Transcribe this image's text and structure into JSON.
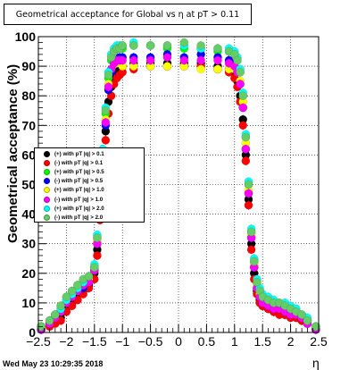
{
  "title": "Geometrical acceptance for Global vs  η at pT > 0.11",
  "footer": {
    "timestamp": "Wed May 23 10:29:35 2018"
  },
  "chart_data": {
    "type": "scatter",
    "title": "Geometrical acceptance for Global vs  η at pT > 0.11",
    "xlabel": "η",
    "ylabel": "Geometrical acceptance (%)",
    "xlim": [
      -2.5,
      2.5
    ],
    "ylim": [
      0,
      100
    ],
    "xticks": [
      "−2.5",
      "−2",
      "−1.5",
      "−1",
      "−0.5",
      "0",
      "0.5",
      "1",
      "1.5",
      "2",
      "2.5"
    ],
    "yticks": [
      "0",
      "10",
      "20",
      "30",
      "40",
      "50",
      "60",
      "70",
      "80",
      "90",
      "100"
    ],
    "grid": true,
    "legend_position": "left",
    "series": [
      {
        "name": "(+) with pT  |q| > 0.1",
        "color": "#000000",
        "x": [
          -2.45,
          -2.3,
          -2.2,
          -2.1,
          -2.0,
          -1.9,
          -1.8,
          -1.7,
          -1.6,
          -1.5,
          -1.45,
          -1.4,
          -1.35,
          -1.3,
          -1.25,
          -1.2,
          -1.15,
          -1.1,
          -1.05,
          -1.0,
          -0.8,
          -0.5,
          -0.2,
          0.1,
          0.4,
          0.7,
          0.9,
          1.0,
          1.05,
          1.1,
          1.15,
          1.2,
          1.25,
          1.3,
          1.35,
          1.4,
          1.45,
          1.5,
          1.6,
          1.7,
          1.8,
          1.9,
          2.0,
          2.1,
          2.2,
          2.3,
          2.45
        ],
        "y": [
          1,
          3,
          4,
          5,
          8,
          10,
          13,
          14,
          16,
          20,
          28,
          40,
          55,
          68,
          78,
          83,
          86,
          88,
          89,
          90,
          91,
          91,
          91,
          91,
          91,
          90,
          89,
          88,
          85,
          80,
          72,
          60,
          45,
          30,
          20,
          14,
          11,
          9,
          8,
          7,
          7,
          6,
          6,
          5,
          4,
          3,
          1
        ]
      },
      {
        "name": "(-) with pT  |q| > 0.1",
        "color": "#ff0000",
        "x": [
          -2.45,
          -2.3,
          -2.2,
          -2.1,
          -2.0,
          -1.9,
          -1.8,
          -1.7,
          -1.6,
          -1.5,
          -1.45,
          -1.4,
          -1.35,
          -1.3,
          -1.25,
          -1.2,
          -1.15,
          -1.1,
          -1.05,
          -1.0,
          -0.8,
          -0.5,
          -0.2,
          0.1,
          0.4,
          0.7,
          0.9,
          1.0,
          1.05,
          1.1,
          1.15,
          1.2,
          1.25,
          1.3,
          1.35,
          1.4,
          1.45,
          1.5,
          1.6,
          1.7,
          1.8,
          1.9,
          2.0,
          2.1,
          2.2,
          2.3,
          2.45
        ],
        "y": [
          1,
          2,
          3,
          4,
          7,
          9,
          11,
          13,
          15,
          18,
          26,
          38,
          52,
          65,
          74,
          80,
          84,
          86,
          87,
          88,
          89,
          90,
          90,
          90,
          90,
          89,
          88,
          86,
          83,
          78,
          70,
          58,
          43,
          28,
          18,
          13,
          10,
          9,
          8,
          7,
          6,
          6,
          5,
          5,
          4,
          3,
          1
        ]
      },
      {
        "name": "(+) with pT  |q| > 0.5",
        "color": "#00ff00",
        "x": [
          -2.45,
          -2.3,
          -2.2,
          -2.1,
          -2.0,
          -1.9,
          -1.8,
          -1.7,
          -1.6,
          -1.5,
          -1.45,
          -1.4,
          -1.35,
          -1.3,
          -1.25,
          -1.2,
          -1.15,
          -1.1,
          -1.05,
          -1.0,
          -0.8,
          -0.5,
          -0.2,
          0.1,
          0.4,
          0.7,
          0.9,
          1.0,
          1.05,
          1.1,
          1.15,
          1.2,
          1.25,
          1.3,
          1.35,
          1.4,
          1.45,
          1.5,
          1.6,
          1.7,
          1.8,
          1.9,
          2.0,
          2.1,
          2.2,
          2.3,
          2.45
        ],
        "y": [
          2,
          4,
          6,
          9,
          12,
          14,
          16,
          17,
          18,
          22,
          32,
          44,
          60,
          74,
          86,
          92,
          95,
          96,
          96,
          96,
          97,
          97,
          96,
          96,
          96,
          95,
          95,
          94,
          92,
          88,
          80,
          66,
          50,
          34,
          24,
          17,
          14,
          12,
          11,
          10,
          9,
          9,
          8,
          7,
          6,
          4,
          2
        ]
      },
      {
        "name": "(-) with pT  |q| > 0.5",
        "color": "#0000ff",
        "x": [
          -2.45,
          -2.3,
          -2.2,
          -2.1,
          -2.0,
          -1.9,
          -1.8,
          -1.7,
          -1.6,
          -1.5,
          -1.45,
          -1.4,
          -1.35,
          -1.3,
          -1.25,
          -1.2,
          -1.15,
          -1.1,
          -1.05,
          -1.0,
          -0.8,
          -0.5,
          -0.2,
          0.1,
          0.4,
          0.7,
          0.9,
          1.0,
          1.05,
          1.1,
          1.15,
          1.2,
          1.25,
          1.3,
          1.35,
          1.4,
          1.45,
          1.5,
          1.6,
          1.7,
          1.8,
          1.9,
          2.0,
          2.1,
          2.2,
          2.3,
          2.45
        ],
        "y": [
          1,
          3,
          5,
          7,
          10,
          12,
          14,
          15,
          17,
          21,
          30,
          42,
          57,
          70,
          82,
          88,
          91,
          92,
          93,
          93,
          93,
          93,
          94,
          93,
          94,
          93,
          92,
          91,
          89,
          84,
          76,
          62,
          47,
          32,
          22,
          15,
          12,
          10,
          9,
          8,
          8,
          7,
          7,
          6,
          5,
          4,
          1
        ]
      },
      {
        "name": "(+) with pT  |q| > 1.0",
        "color": "#ffff00",
        "x": [
          -2.45,
          -2.3,
          -2.2,
          -2.1,
          -2.0,
          -1.9,
          -1.8,
          -1.7,
          -1.6,
          -1.5,
          -1.45,
          -1.4,
          -1.35,
          -1.3,
          -1.25,
          -1.2,
          -1.15,
          -1.1,
          -1.05,
          -1.0,
          -0.8,
          -0.5,
          -0.2,
          0.1,
          0.4,
          0.7,
          0.9,
          1.0,
          1.05,
          1.1,
          1.15,
          1.2,
          1.25,
          1.3,
          1.35,
          1.4,
          1.45,
          1.5,
          1.6,
          1.7,
          1.8,
          1.9,
          2.0,
          2.1,
          2.2,
          2.3,
          2.45
        ],
        "y": [
          2,
          3,
          5,
          8,
          11,
          13,
          15,
          16,
          18,
          22,
          31,
          43,
          58,
          72,
          84,
          89,
          91,
          91,
          91,
          90,
          90,
          90,
          90,
          90,
          89,
          89,
          89,
          89,
          88,
          85,
          78,
          64,
          48,
          33,
          23,
          16,
          13,
          11,
          10,
          9,
          9,
          8,
          7,
          7,
          5,
          4,
          2
        ]
      },
      {
        "name": "(-) with pT  |q| > 1.0",
        "color": "#ff00ff",
        "x": [
          -2.45,
          -2.3,
          -2.2,
          -2.1,
          -2.0,
          -1.9,
          -1.8,
          -1.7,
          -1.6,
          -1.5,
          -1.45,
          -1.4,
          -1.35,
          -1.3,
          -1.25,
          -1.2,
          -1.15,
          -1.1,
          -1.05,
          -1.0,
          -0.8,
          -0.5,
          -0.2,
          0.1,
          0.4,
          0.7,
          0.9,
          1.0,
          1.05,
          1.1,
          1.15,
          1.2,
          1.25,
          1.3,
          1.35,
          1.4,
          1.45,
          1.5,
          1.6,
          1.7,
          1.8,
          1.9,
          2.0,
          2.1,
          2.2,
          2.3,
          2.45
        ],
        "y": [
          1,
          3,
          5,
          7,
          10,
          12,
          14,
          16,
          17,
          21,
          30,
          42,
          57,
          71,
          83,
          89,
          91,
          92,
          92,
          92,
          92,
          92,
          93,
          92,
          92,
          92,
          91,
          90,
          88,
          84,
          76,
          62,
          47,
          32,
          22,
          15,
          12,
          10,
          9,
          8,
          8,
          7,
          6,
          6,
          5,
          3,
          1
        ]
      },
      {
        "name": "(+) with pT  |q| > 2.0",
        "color": "#00ffff",
        "x": [
          -2.45,
          -2.3,
          -2.2,
          -2.1,
          -2.0,
          -1.9,
          -1.8,
          -1.7,
          -1.6,
          -1.5,
          -1.45,
          -1.4,
          -1.35,
          -1.3,
          -1.25,
          -1.2,
          -1.15,
          -1.1,
          -1.05,
          -1.0,
          -0.8,
          -0.5,
          -0.2,
          0.1,
          0.4,
          0.7,
          0.9,
          1.0,
          1.05,
          1.1,
          1.15,
          1.2,
          1.25,
          1.3,
          1.35,
          1.4,
          1.45,
          1.5,
          1.6,
          1.7,
          1.8,
          1.9,
          2.0,
          2.1,
          2.2,
          2.3,
          2.45
        ],
        "y": [
          2,
          4,
          6,
          8,
          11,
          13,
          15,
          17,
          19,
          23,
          33,
          46,
          62,
          76,
          88,
          94,
          96,
          97,
          97,
          97,
          98,
          97,
          97,
          97,
          96,
          96,
          96,
          95,
          93,
          89,
          81,
          67,
          51,
          35,
          25,
          18,
          15,
          13,
          12,
          11,
          10,
          10,
          9,
          8,
          6,
          5,
          2
        ]
      },
      {
        "name": "(-) with pT  |q| > 2.0",
        "color": "#66cc66",
        "x": [
          -2.45,
          -2.3,
          -2.2,
          -2.1,
          -2.0,
          -1.9,
          -1.8,
          -1.7,
          -1.6,
          -1.5,
          -1.45,
          -1.4,
          -1.35,
          -1.3,
          -1.25,
          -1.2,
          -1.15,
          -1.1,
          -1.05,
          -1.0,
          -0.8,
          -0.5,
          -0.2,
          0.1,
          0.4,
          0.7,
          0.9,
          1.0,
          1.05,
          1.1,
          1.15,
          1.2,
          1.25,
          1.3,
          1.35,
          1.4,
          1.45,
          1.5,
          1.6,
          1.7,
          1.8,
          1.9,
          2.0,
          2.1,
          2.2,
          2.3,
          2.45
        ],
        "y": [
          2,
          4,
          6,
          9,
          12,
          14,
          16,
          18,
          19,
          22,
          32,
          45,
          61,
          75,
          87,
          93,
          95,
          96,
          96,
          97,
          97,
          97,
          97,
          98,
          97,
          96,
          95,
          94,
          92,
          88,
          80,
          66,
          50,
          34,
          24,
          17,
          14,
          12,
          11,
          10,
          10,
          9,
          8,
          7,
          6,
          4,
          2
        ]
      }
    ]
  }
}
